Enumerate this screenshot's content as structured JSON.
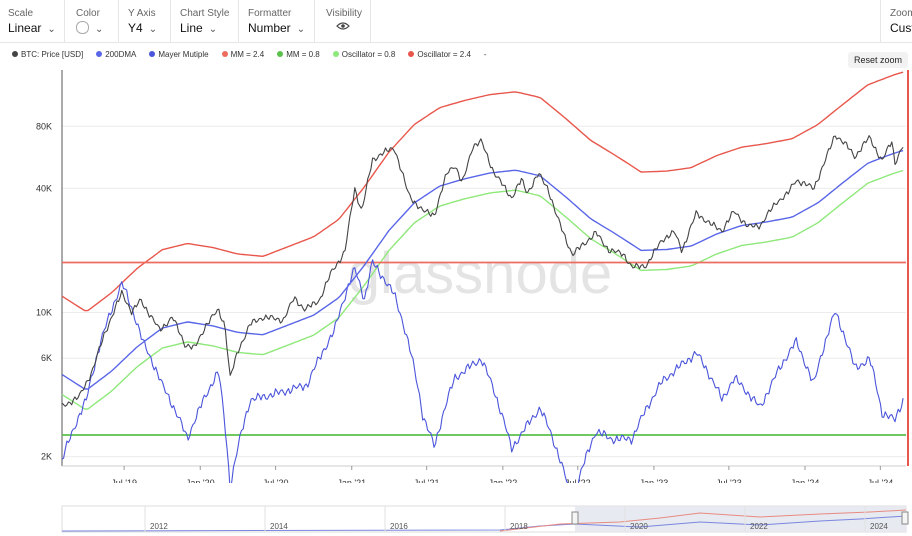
{
  "toolbar": {
    "scale": {
      "label": "Scale",
      "value": "Linear",
      "chevron": "chevron-down-icon"
    },
    "color": {
      "label": "Color",
      "swatch": "#ffffff",
      "chevron": "chevron-down-icon"
    },
    "yaxis": {
      "label": "Y Axis",
      "value": "Y4",
      "chevron": "chevron-down-icon"
    },
    "chart_style": {
      "label": "Chart Style",
      "value": "Line",
      "chevron": "chevron-down-icon"
    },
    "formatter": {
      "label": "Formatter",
      "value": "Number",
      "chevron": "chevron-down-icon"
    },
    "visibility": {
      "label": "Visibility",
      "icon": "eye-icon"
    },
    "zoom": {
      "label": "Zoom",
      "value": "Custo"
    }
  },
  "reset_zoom": "Reset zoom",
  "watermark": "glassnode",
  "navigator": {
    "labels": [
      "2012",
      "2014",
      "2016",
      "2018",
      "2020",
      "2022",
      "2024"
    ]
  },
  "chart_data": {
    "type": "line",
    "title": "",
    "xlabel": "",
    "ylabel": "",
    "x_range": [
      "2019-02-01",
      "2024-09-01"
    ],
    "x_ticks": [
      {
        "date": "2019-07-01",
        "label": "Jul '19"
      },
      {
        "date": "2020-01-01",
        "label": "Jan '20"
      },
      {
        "date": "2020-07-01",
        "label": "Jul '20"
      },
      {
        "date": "2021-01-01",
        "label": "Jan '21"
      },
      {
        "date": "2021-07-01",
        "label": "Jul '21"
      },
      {
        "date": "2022-01-01",
        "label": "Jan '22"
      },
      {
        "date": "2022-07-01",
        "label": "Jul '22"
      },
      {
        "date": "2023-01-01",
        "label": "Jan '23"
      },
      {
        "date": "2023-07-01",
        "label": "Jul '23"
      },
      {
        "date": "2024-01-01",
        "label": "Jan '24"
      },
      {
        "date": "2024-07-01",
        "label": "Jul '24"
      }
    ],
    "y_scale": "log",
    "y_range": [
      1800,
      150000
    ],
    "y_ticks": [
      {
        "value": 2000,
        "label": "2K"
      },
      {
        "value": 6000,
        "label": "6K"
      },
      {
        "value": 10000,
        "label": "10K"
      },
      {
        "value": 40000,
        "label": "40K"
      },
      {
        "value": 80000,
        "label": "80K"
      }
    ],
    "grid": true,
    "legend_position": "top-left",
    "series": [
      {
        "name": "BTC: Price [USD]",
        "color": "#444444",
        "jitter": true,
        "data": [
          [
            "2019-02-01",
            3500
          ],
          [
            "2019-03-15",
            3900
          ],
          [
            "2019-04-15",
            5200
          ],
          [
            "2019-05-15",
            7900
          ],
          [
            "2019-06-26",
            12500
          ],
          [
            "2019-07-20",
            10000
          ],
          [
            "2019-08-10",
            11500
          ],
          [
            "2019-09-25",
            8200
          ],
          [
            "2019-10-26",
            9500
          ],
          [
            "2019-11-25",
            7000
          ],
          [
            "2019-12-18",
            6700
          ],
          [
            "2020-01-15",
            8700
          ],
          [
            "2020-02-14",
            10300
          ],
          [
            "2020-03-01",
            8600
          ],
          [
            "2020-03-13",
            4800
          ],
          [
            "2020-04-01",
            6500
          ],
          [
            "2020-05-01",
            8800
          ],
          [
            "2020-06-01",
            9500
          ],
          [
            "2020-07-20",
            9200
          ],
          [
            "2020-08-15",
            11800
          ],
          [
            "2020-09-10",
            10300
          ],
          [
            "2020-10-15",
            11500
          ],
          [
            "2020-11-15",
            16000
          ],
          [
            "2020-12-15",
            19500
          ],
          [
            "2021-01-08",
            40000
          ],
          [
            "2021-01-25",
            31000
          ],
          [
            "2021-02-20",
            55000
          ],
          [
            "2021-03-15",
            59000
          ],
          [
            "2021-04-14",
            63000
          ],
          [
            "2021-05-19",
            37000
          ],
          [
            "2021-06-22",
            31000
          ],
          [
            "2021-07-20",
            29800
          ],
          [
            "2021-08-20",
            48000
          ],
          [
            "2021-09-07",
            52000
          ],
          [
            "2021-09-25",
            42000
          ],
          [
            "2021-10-20",
            64000
          ],
          [
            "2021-11-10",
            67500
          ],
          [
            "2021-12-10",
            48000
          ],
          [
            "2022-01-22",
            36000
          ],
          [
            "2022-02-15",
            44000
          ],
          [
            "2022-03-01",
            38000
          ],
          [
            "2022-03-28",
            47000
          ],
          [
            "2022-04-20",
            40000
          ],
          [
            "2022-05-12",
            29000
          ],
          [
            "2022-06-18",
            19000
          ],
          [
            "2022-07-10",
            21000
          ],
          [
            "2022-08-14",
            24300
          ],
          [
            "2022-09-15",
            20000
          ],
          [
            "2022-10-20",
            19200
          ],
          [
            "2022-11-09",
            16500
          ],
          [
            "2022-12-15",
            17000
          ],
          [
            "2023-01-20",
            22500
          ],
          [
            "2023-02-20",
            24500
          ],
          [
            "2023-03-10",
            20000
          ],
          [
            "2023-04-14",
            30500
          ],
          [
            "2023-05-15",
            27000
          ],
          [
            "2023-06-15",
            25000
          ],
          [
            "2023-07-14",
            31000
          ],
          [
            "2023-08-17",
            26000
          ],
          [
            "2023-09-15",
            26500
          ],
          [
            "2023-10-25",
            34500
          ],
          [
            "2023-11-20",
            37500
          ],
          [
            "2023-12-10",
            44000
          ],
          [
            "2024-01-22",
            40000
          ],
          [
            "2024-02-15",
            52000
          ],
          [
            "2024-03-14",
            73000
          ],
          [
            "2024-04-15",
            63000
          ],
          [
            "2024-05-01",
            57000
          ],
          [
            "2024-06-05",
            71000
          ],
          [
            "2024-07-05",
            54000
          ],
          [
            "2024-07-29",
            68500
          ],
          [
            "2024-08-05",
            53000
          ],
          [
            "2024-08-25",
            64000
          ]
        ]
      },
      {
        "name": "200DMA",
        "color": "#5a66e8",
        "data": [
          [
            "2019-02-01",
            5000
          ],
          [
            "2019-04-01",
            4200
          ],
          [
            "2019-06-01",
            5200
          ],
          [
            "2019-08-01",
            6800
          ],
          [
            "2019-10-01",
            8400
          ],
          [
            "2019-12-01",
            9000
          ],
          [
            "2020-02-01",
            8600
          ],
          [
            "2020-04-01",
            8000
          ],
          [
            "2020-06-01",
            7800
          ],
          [
            "2020-08-01",
            8700
          ],
          [
            "2020-10-01",
            9700
          ],
          [
            "2020-12-01",
            11800
          ],
          [
            "2021-02-01",
            17000
          ],
          [
            "2021-04-01",
            25000
          ],
          [
            "2021-06-01",
            34000
          ],
          [
            "2021-08-01",
            41000
          ],
          [
            "2021-10-01",
            44500
          ],
          [
            "2021-12-01",
            47500
          ],
          [
            "2022-02-01",
            49000
          ],
          [
            "2022-04-01",
            46000
          ],
          [
            "2022-06-01",
            36500
          ],
          [
            "2022-08-01",
            28500
          ],
          [
            "2022-10-01",
            24000
          ],
          [
            "2022-12-01",
            20000
          ],
          [
            "2023-02-01",
            20200
          ],
          [
            "2023-04-01",
            21000
          ],
          [
            "2023-06-01",
            24000
          ],
          [
            "2023-08-01",
            26400
          ],
          [
            "2023-10-01",
            27500
          ],
          [
            "2023-12-01",
            29000
          ],
          [
            "2024-02-01",
            34000
          ],
          [
            "2024-04-01",
            42500
          ],
          [
            "2024-06-01",
            53000
          ],
          [
            "2024-08-01",
            59000
          ],
          [
            "2024-08-25",
            61000
          ]
        ]
      },
      {
        "name": "Mayer Mutiple",
        "color": "#4b55db",
        "jitter": true,
        "sub": true,
        "data": [
          [
            "2019-02-01",
            0.68
          ],
          [
            "2019-04-01",
            1.0
          ],
          [
            "2019-06-26",
            2.1
          ],
          [
            "2019-08-15",
            1.45
          ],
          [
            "2019-10-01",
            1.1
          ],
          [
            "2019-12-01",
            0.78
          ],
          [
            "2020-02-14",
            1.2
          ],
          [
            "2020-03-13",
            0.57
          ],
          [
            "2020-05-01",
            1.0
          ],
          [
            "2020-07-15",
            1.05
          ],
          [
            "2020-09-15",
            1.1
          ],
          [
            "2020-11-20",
            1.55
          ],
          [
            "2021-01-08",
            2.3
          ],
          [
            "2021-02-01",
            1.9
          ],
          [
            "2021-02-20",
            2.4
          ],
          [
            "2021-04-14",
            1.95
          ],
          [
            "2021-06-22",
            0.9
          ],
          [
            "2021-07-20",
            0.74
          ],
          [
            "2021-09-07",
            1.15
          ],
          [
            "2021-11-10",
            1.3
          ],
          [
            "2022-01-22",
            0.73
          ],
          [
            "2022-04-01",
            0.95
          ],
          [
            "2022-06-18",
            0.52
          ],
          [
            "2022-08-14",
            0.82
          ],
          [
            "2022-09-20",
            0.78
          ],
          [
            "2022-11-09",
            0.78
          ],
          [
            "2023-01-20",
            1.12
          ],
          [
            "2023-04-14",
            1.35
          ],
          [
            "2023-06-15",
            1.0
          ],
          [
            "2023-07-14",
            1.15
          ],
          [
            "2023-09-15",
            0.95
          ],
          [
            "2023-12-10",
            1.45
          ],
          [
            "2024-01-22",
            1.1
          ],
          [
            "2024-03-14",
            1.75
          ],
          [
            "2024-05-01",
            1.22
          ],
          [
            "2024-06-05",
            1.3
          ],
          [
            "2024-07-05",
            0.92
          ],
          [
            "2024-08-05",
            0.88
          ],
          [
            "2024-08-25",
            1.0
          ]
        ]
      },
      {
        "name": "MM = 2.4",
        "color": "#ee6b60",
        "sub": true,
        "const": 2.4
      },
      {
        "name": "MM = 0.8",
        "color": "#5cc04d",
        "sub": true,
        "const": 0.8
      },
      {
        "name": "Oscillator = 0.8",
        "color": "#8fe87a",
        "mult": 0.8
      },
      {
        "name": "Oscillator = 2.4",
        "color": "#e8574c",
        "mult": 2.4
      },
      {
        "name": "-",
        "color": "#bbbbbb",
        "hidden": true
      }
    ]
  }
}
